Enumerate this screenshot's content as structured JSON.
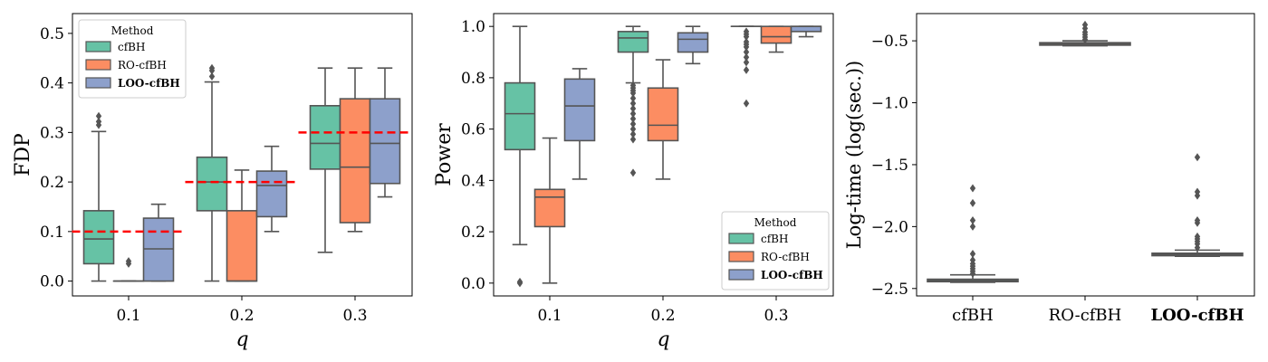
{
  "colors": {
    "cfBH": "#66c2a5",
    "RO-cfBH": "#fc8d62",
    "LOO-cfBH": "#8da0cb",
    "box_edge": "#555555",
    "target_line": "#ff0000",
    "outlier": "#555555"
  },
  "chart_data": [
    {
      "type": "box",
      "name": "fdp",
      "xlabel": "q",
      "ylabel": "FDP",
      "ylim": [
        -0.03,
        0.54
      ],
      "yticks": [
        0.0,
        0.1,
        0.2,
        0.3,
        0.4,
        0.5
      ],
      "ytick_labels": [
        "0.0",
        "0.1",
        "0.2",
        "0.3",
        "0.4",
        "0.5"
      ],
      "categories": [
        "0.1",
        "0.2",
        "0.3"
      ],
      "legend": {
        "title": "Method",
        "position": "top-left",
        "entries": [
          "cfBH",
          "RO-cfBH",
          "LOO-cfBH"
        ],
        "bold_entry": "LOO-cfBH"
      },
      "target_lines": [
        0.1,
        0.2,
        0.3
      ],
      "series": [
        {
          "name": "cfBH",
          "boxes": [
            {
              "q1": 0.035,
              "median": 0.085,
              "q3": 0.142,
              "lo": 0.0,
              "hi": 0.302,
              "outliers": [
                0.315,
                0.322,
                0.333
              ]
            },
            {
              "q1": 0.142,
              "median": 0.2,
              "q3": 0.25,
              "lo": 0.0,
              "hi": 0.402,
              "outliers": [
                0.413,
                0.425,
                0.43
              ]
            },
            {
              "q1": 0.226,
              "median": 0.278,
              "q3": 0.354,
              "lo": 0.058,
              "hi": 0.43,
              "outliers": []
            }
          ]
        },
        {
          "name": "RO-cfBH",
          "boxes": [
            {
              "q1": 0.0,
              "median": 0.0,
              "q3": 0.0,
              "lo": 0.0,
              "hi": 0.0,
              "outliers": [
                0.035,
                0.04
              ]
            },
            {
              "q1": 0.0,
              "median": 0.0,
              "q3": 0.142,
              "lo": 0.0,
              "hi": 0.224,
              "outliers": []
            },
            {
              "q1": 0.118,
              "median": 0.23,
              "q3": 0.368,
              "lo": 0.1,
              "hi": 0.43,
              "outliers": []
            }
          ]
        },
        {
          "name": "LOO-cfBH",
          "boxes": [
            {
              "q1": 0.0,
              "median": 0.065,
              "q3": 0.127,
              "lo": 0.0,
              "hi": 0.155,
              "outliers": []
            },
            {
              "q1": 0.13,
              "median": 0.193,
              "q3": 0.222,
              "lo": 0.1,
              "hi": 0.272,
              "outliers": []
            },
            {
              "q1": 0.197,
              "median": 0.278,
              "q3": 0.368,
              "lo": 0.17,
              "hi": 0.43,
              "outliers": []
            }
          ]
        }
      ]
    },
    {
      "type": "box",
      "name": "power",
      "xlabel": "q",
      "ylabel": "Power",
      "ylim": [
        -0.05,
        1.05
      ],
      "yticks": [
        0.0,
        0.2,
        0.4,
        0.6,
        0.8,
        1.0
      ],
      "ytick_labels": [
        "0.0",
        "0.2",
        "0.4",
        "0.6",
        "0.8",
        "1.0"
      ],
      "categories": [
        "0.1",
        "0.2",
        "0.3"
      ],
      "legend": {
        "title": "Method",
        "position": "bottom-right",
        "entries": [
          "cfBH",
          "RO-cfBH",
          "LOO-cfBH"
        ],
        "bold_entry": "LOO-cfBH"
      },
      "series": [
        {
          "name": "cfBH",
          "boxes": [
            {
              "q1": 0.52,
              "median": 0.66,
              "q3": 0.78,
              "lo": 0.15,
              "hi": 1.0,
              "outliers": [
                0.0,
                0.005
              ]
            },
            {
              "q1": 0.9,
              "median": 0.955,
              "q3": 0.98,
              "lo": 0.78,
              "hi": 1.0,
              "outliers": [
                0.77,
                0.76,
                0.75,
                0.74,
                0.72,
                0.7,
                0.68,
                0.66,
                0.64,
                0.62,
                0.6,
                0.58,
                0.56,
                0.43
              ]
            },
            {
              "q1": 1.0,
              "median": 1.0,
              "q3": 1.0,
              "lo": 1.0,
              "hi": 1.0,
              "outliers": [
                0.98,
                0.97,
                0.96,
                0.94,
                0.93,
                0.92,
                0.9,
                0.88,
                0.86,
                0.83,
                0.7
              ]
            }
          ]
        },
        {
          "name": "RO-cfBH",
          "boxes": [
            {
              "q1": 0.22,
              "median": 0.335,
              "q3": 0.365,
              "lo": 0.0,
              "hi": 0.565,
              "outliers": []
            },
            {
              "q1": 0.555,
              "median": 0.615,
              "q3": 0.76,
              "lo": 0.405,
              "hi": 0.87,
              "outliers": []
            },
            {
              "q1": 0.935,
              "median": 0.96,
              "q3": 1.0,
              "lo": 0.9,
              "hi": 1.0,
              "outliers": []
            }
          ]
        },
        {
          "name": "LOO-cfBH",
          "boxes": [
            {
              "q1": 0.555,
              "median": 0.69,
              "q3": 0.795,
              "lo": 0.405,
              "hi": 0.835,
              "outliers": []
            },
            {
              "q1": 0.9,
              "median": 0.95,
              "q3": 0.975,
              "lo": 0.855,
              "hi": 1.0,
              "outliers": []
            },
            {
              "q1": 0.98,
              "median": 1.0,
              "q3": 1.0,
              "lo": 0.96,
              "hi": 1.0,
              "outliers": []
            }
          ]
        }
      ]
    },
    {
      "type": "box",
      "name": "time",
      "xlabel": "",
      "ylabel": "Log-time (log(sec.))",
      "ylim": [
        -2.56,
        -0.28
      ],
      "yticks": [
        -2.5,
        -2.0,
        -1.5,
        -1.0,
        -0.5
      ],
      "ytick_labels": [
        "−2.5",
        "−2.0",
        "−1.5",
        "−1.0",
        "−0.5"
      ],
      "categories": [
        "cfBH",
        "RO-cfBH",
        "LOO-cfBH"
      ],
      "bold_category": "LOO-cfBH",
      "boxes": [
        {
          "name": "cfBH",
          "q1": -2.445,
          "median": -2.435,
          "q3": -2.425,
          "lo": -2.45,
          "hi": -2.39,
          "outliers": [
            -2.38,
            -2.36,
            -2.34,
            -2.32,
            -2.3,
            -2.27,
            -2.22,
            -2.0,
            -1.95,
            -1.81,
            -1.69
          ]
        },
        {
          "name": "RO-cfBH",
          "q1": -0.535,
          "median": -0.525,
          "q3": -0.515,
          "lo": -0.54,
          "hi": -0.5,
          "outliers": [
            -0.49,
            -0.47,
            -0.45,
            -0.43,
            -0.4,
            -0.37
          ]
        },
        {
          "name": "LOO-cfBH",
          "q1": -2.235,
          "median": -2.225,
          "q3": -2.215,
          "lo": -2.24,
          "hi": -2.19,
          "outliers": [
            -2.17,
            -2.14,
            -2.12,
            -2.1,
            -2.08,
            -1.97,
            -1.95,
            -1.75,
            -1.72,
            -1.44
          ]
        }
      ]
    }
  ]
}
